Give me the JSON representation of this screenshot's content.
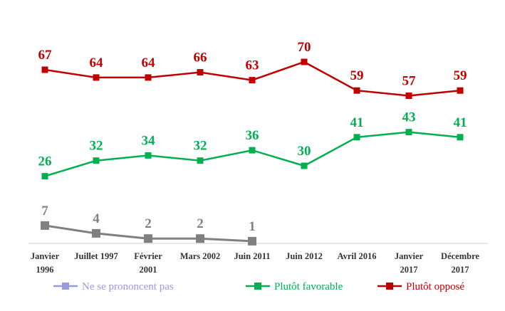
{
  "chart_data": {
    "type": "line",
    "categories": [
      [
        "Janvier",
        "1996"
      ],
      [
        "Juillet 1997"
      ],
      [
        "Février",
        "2001"
      ],
      [
        "Mars 2002"
      ],
      [
        "Juin 2011"
      ],
      [
        "Juin 2012"
      ],
      [
        "Avril 2016"
      ],
      [
        "Janvier",
        "2017"
      ],
      [
        "Décembre",
        "2017"
      ]
    ],
    "series": [
      {
        "name": "Ne se prononcent pas",
        "color": "#808080",
        "legend_color": "#9999dd",
        "values": [
          7,
          4,
          2,
          2,
          1,
          null,
          null,
          null,
          null
        ]
      },
      {
        "name": "Plutôt favorable",
        "color": "#00b050",
        "values": [
          26,
          32,
          34,
          32,
          36,
          30,
          41,
          43,
          41
        ]
      },
      {
        "name": "Plutôt opposé",
        "color": "#c00000",
        "values": [
          67,
          64,
          64,
          66,
          63,
          70,
          59,
          57,
          59
        ]
      }
    ],
    "ylim": [
      0,
      80
    ],
    "grid": false,
    "legend_position": "bottom"
  }
}
